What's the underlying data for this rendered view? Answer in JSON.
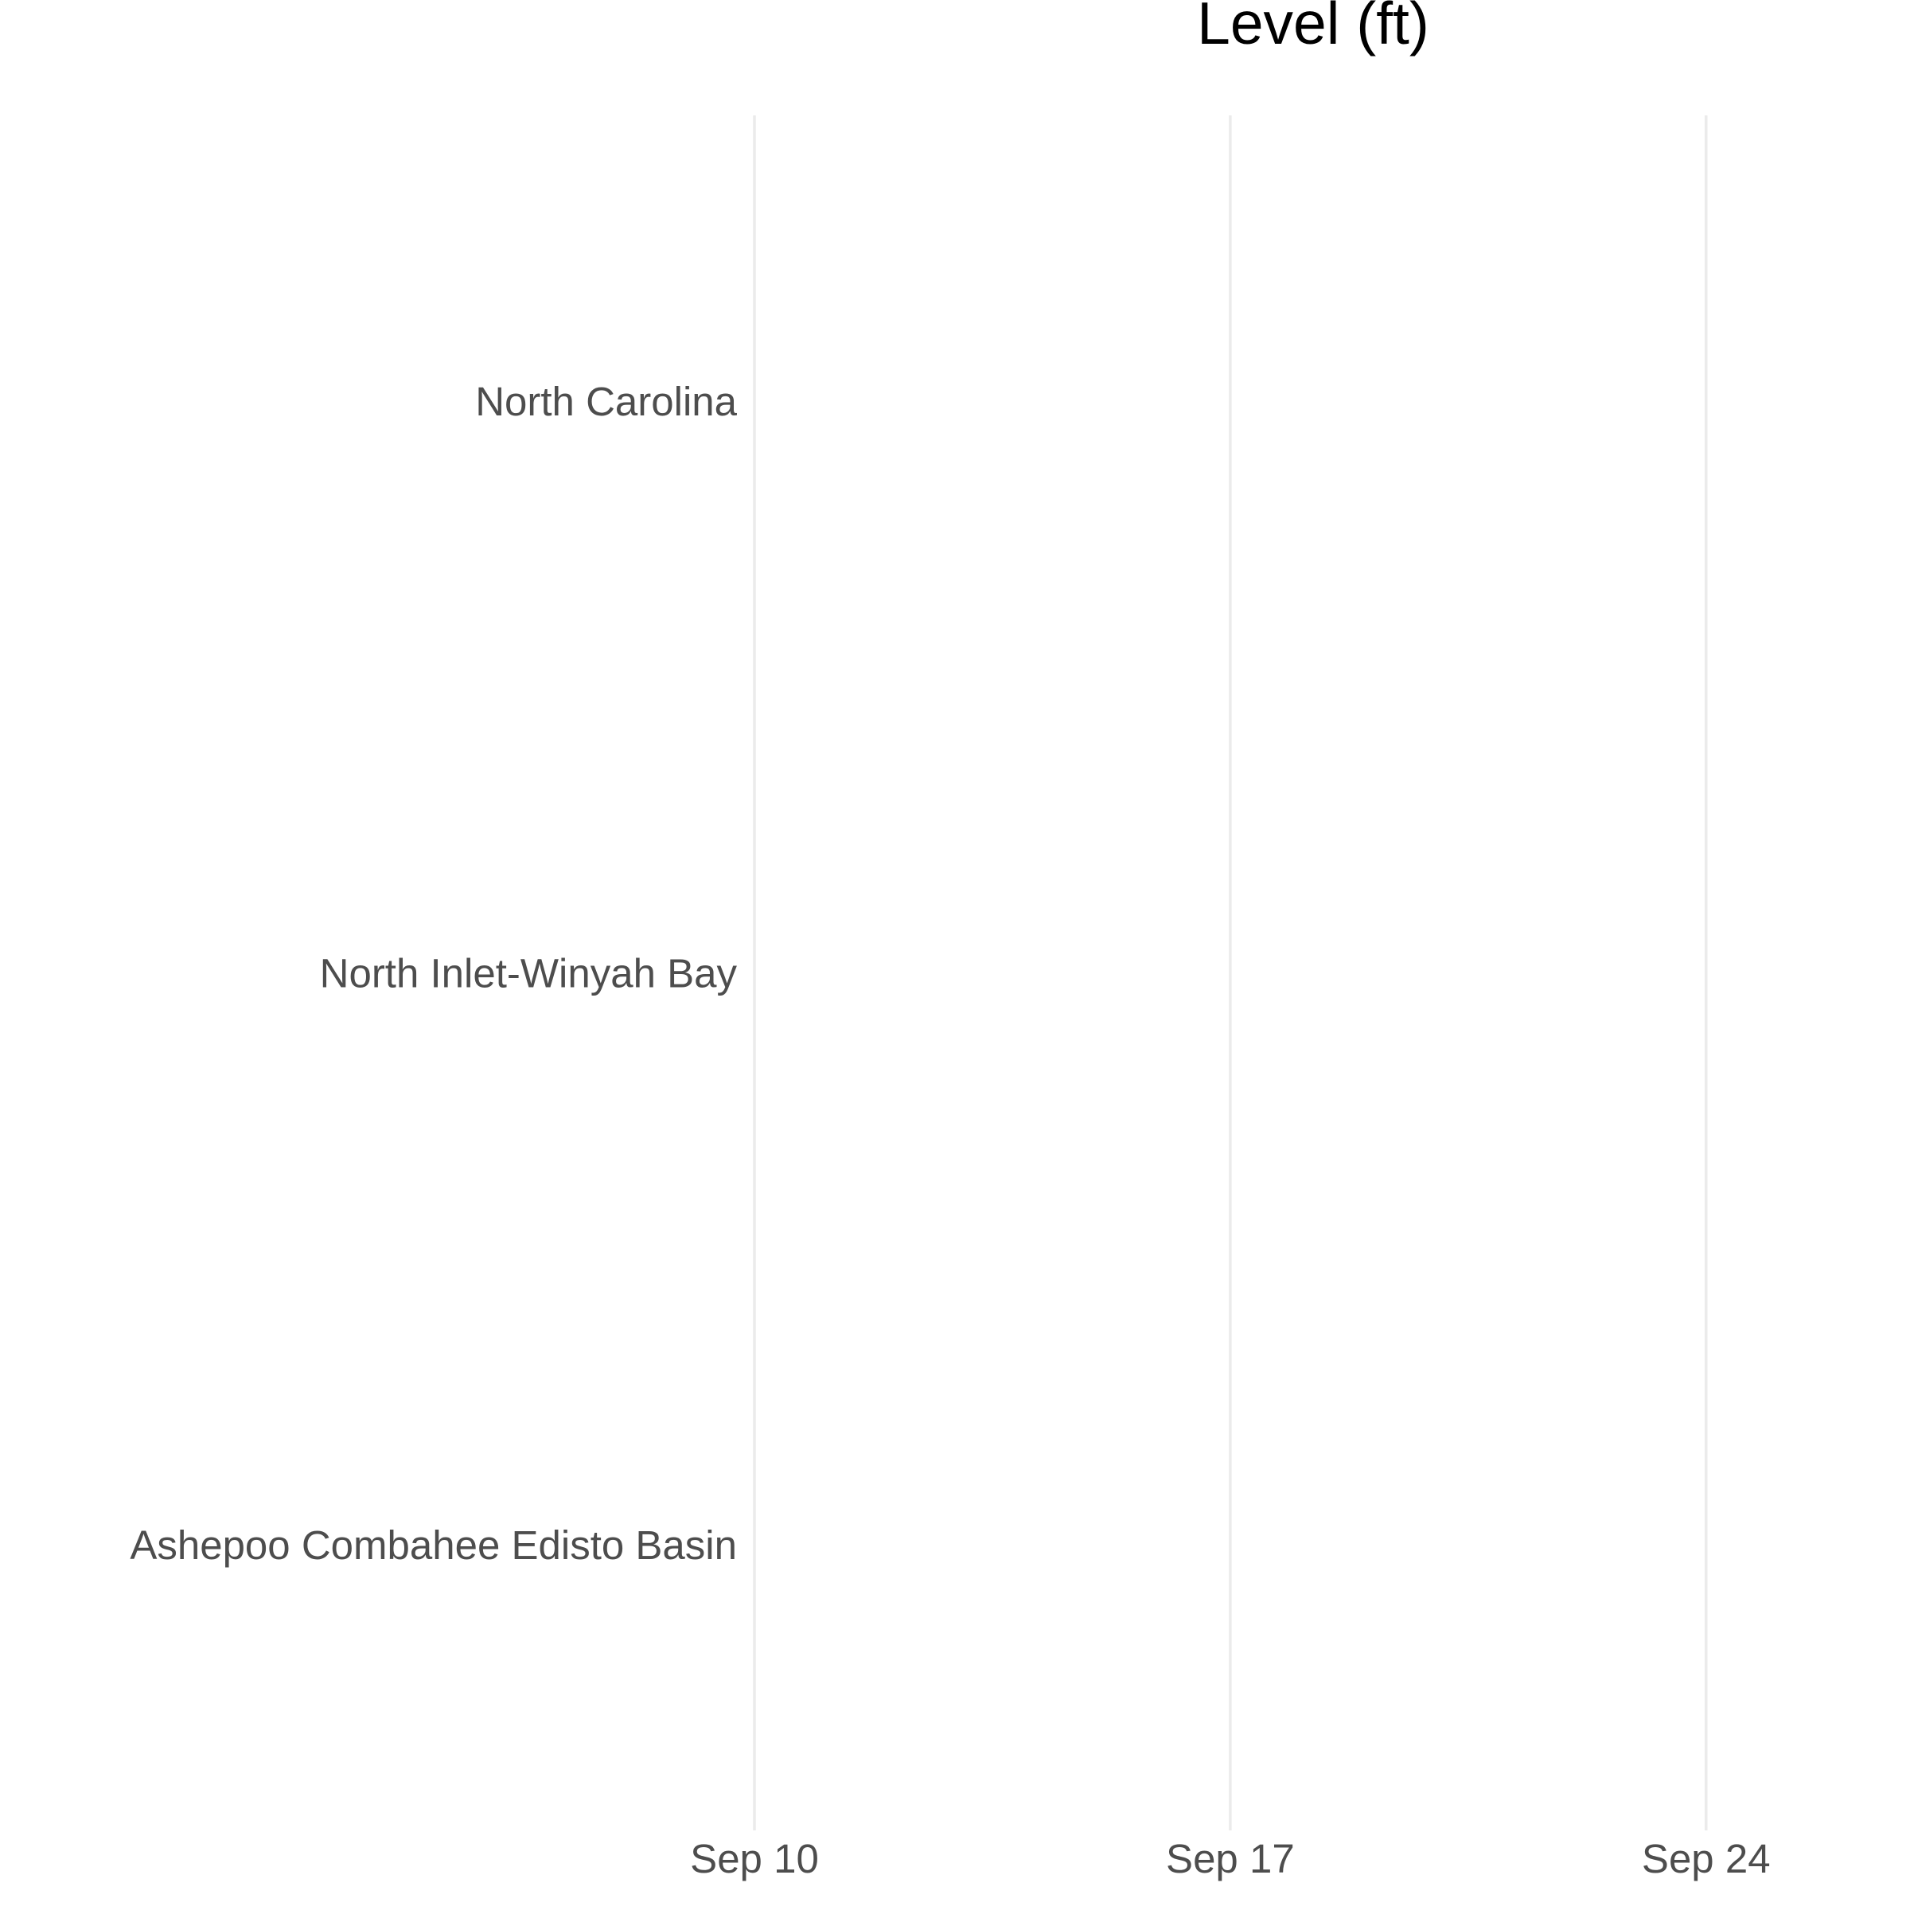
{
  "chart_data": {
    "type": "line",
    "title": "Level (ft)",
    "xlabel": "",
    "ylabel": "",
    "x_axis": {
      "type": "date",
      "ticks": [
        "2024-09-10",
        "2024-09-17",
        "2024-09-24"
      ],
      "tick_labels": [
        "Sep 10",
        "Sep 17",
        "Sep 24"
      ],
      "range": [
        "2024-09-10",
        "2024-09-27"
      ]
    },
    "y_axis": {
      "type": "categorical",
      "categories": [
        "North Carolina",
        "North Inlet-Winyah Bay",
        "Ashepoo Combahee Edisto Basin"
      ]
    },
    "series": [],
    "grid": "vertical-major",
    "legend": "none"
  }
}
